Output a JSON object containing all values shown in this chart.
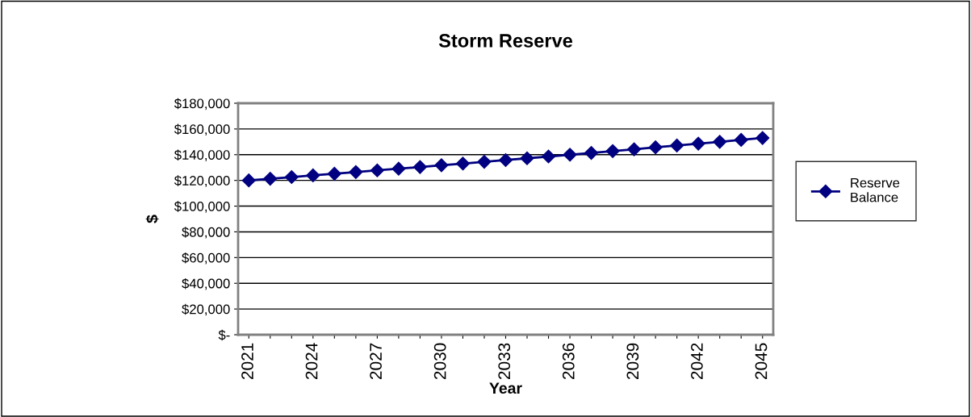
{
  "chart_data": {
    "type": "line",
    "title": "Storm Reserve",
    "xlabel": "Year",
    "ylabel": "$",
    "categories": [
      "2021",
      null,
      null,
      "2024",
      null,
      null,
      "2027",
      null,
      null,
      "2030",
      null,
      null,
      "2033",
      null,
      null,
      "2036",
      null,
      null,
      "2039",
      null,
      null,
      "2042",
      null,
      null,
      "2045"
    ],
    "series": [
      {
        "name": "Reserve Balance",
        "color": "#000080",
        "values": [
          120000,
          121300,
          122600,
          123900,
          125200,
          126500,
          127800,
          129100,
          130400,
          131800,
          133100,
          134500,
          135800,
          137200,
          138600,
          140000,
          141400,
          142800,
          144200,
          145700,
          147100,
          148600,
          150000,
          151500,
          153000
        ]
      }
    ],
    "ylim": [
      0,
      180000
    ],
    "yticks": [
      {
        "value": 0,
        "label": "$-"
      },
      {
        "value": 20000,
        "label": "$20,000"
      },
      {
        "value": 40000,
        "label": "$40,000"
      },
      {
        "value": 60000,
        "label": "$60,000"
      },
      {
        "value": 80000,
        "label": "$80,000"
      },
      {
        "value": 100000,
        "label": "$100,000"
      },
      {
        "value": 120000,
        "label": "$120,000"
      },
      {
        "value": 140000,
        "label": "$140,000"
      },
      {
        "value": 160000,
        "label": "$160,000"
      },
      {
        "value": 180000,
        "label": "$180,000"
      }
    ],
    "grid": "y",
    "legend": "right",
    "marker": "diamond",
    "line_style": "solid"
  }
}
